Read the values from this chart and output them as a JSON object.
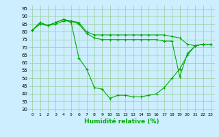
{
  "title": "",
  "xlabel": "Humidité relative (%)",
  "ylabel": "",
  "background_color": "#cceeff",
  "line_color": "#00aa00",
  "grid_color": "#99cc99",
  "ylim": [
    28,
    97
  ],
  "xlim": [
    -0.5,
    23.5
  ],
  "yticks": [
    30,
    35,
    40,
    45,
    50,
    55,
    60,
    65,
    70,
    75,
    80,
    85,
    90,
    95
  ],
  "xticks": [
    0,
    1,
    2,
    3,
    4,
    5,
    6,
    7,
    8,
    9,
    10,
    11,
    12,
    13,
    14,
    15,
    16,
    17,
    18,
    19,
    20,
    21,
    22,
    23
  ],
  "series": [
    [
      81,
      86,
      84,
      86,
      88,
      87,
      86,
      80,
      78,
      78,
      78,
      78,
      78,
      78,
      78,
      78,
      78,
      78,
      77,
      76,
      72,
      71,
      72,
      72
    ],
    [
      81,
      85,
      84,
      85,
      87,
      87,
      85,
      79,
      76,
      75,
      75,
      75,
      75,
      75,
      75,
      75,
      75,
      74,
      74,
      51,
      66,
      71,
      72,
      72
    ],
    [
      81,
      86,
      84,
      86,
      88,
      86,
      63,
      56,
      44,
      43,
      37,
      39,
      39,
      38,
      38,
      39,
      40,
      44,
      50,
      56,
      65,
      71,
      72,
      72
    ]
  ]
}
